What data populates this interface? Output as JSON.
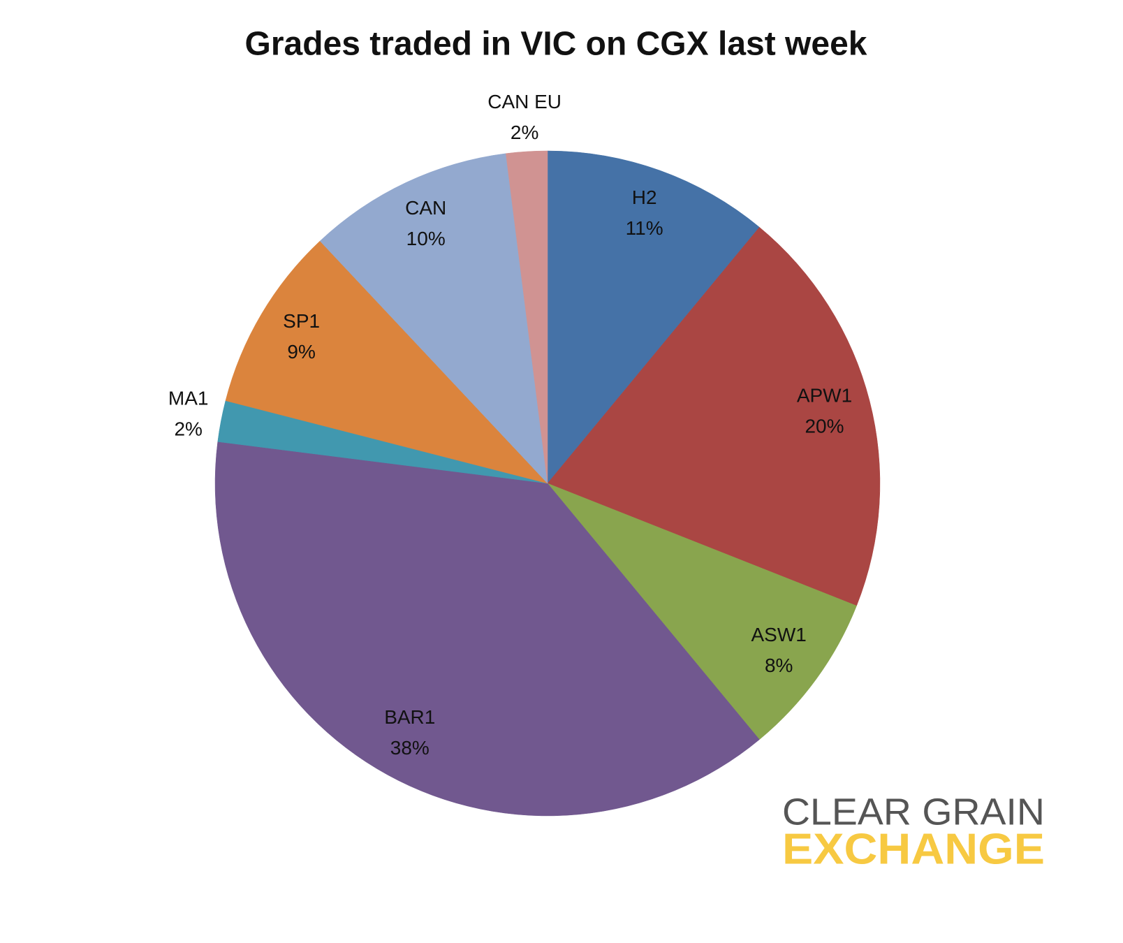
{
  "chart_data": {
    "type": "pie",
    "title": "Grades traded in VIC on CGX last week",
    "categories": [
      "H2",
      "APW1",
      "ASW1",
      "BAR1",
      "MA1",
      "SP1",
      "CAN",
      "CAN EU"
    ],
    "values": [
      11,
      20,
      8,
      38,
      2,
      9,
      10,
      2
    ],
    "value_labels": [
      "11%",
      "20%",
      "8%",
      "38%",
      "2%",
      "9%",
      "10%",
      "2%"
    ],
    "colors": [
      "#4572a7",
      "#aa4643",
      "#89a54e",
      "#71588f",
      "#4198af",
      "#db843d",
      "#93a9cf",
      "#d09392"
    ]
  },
  "logo": {
    "line1": "CLEAR GRAIN",
    "line2": "EXCHANGE"
  }
}
